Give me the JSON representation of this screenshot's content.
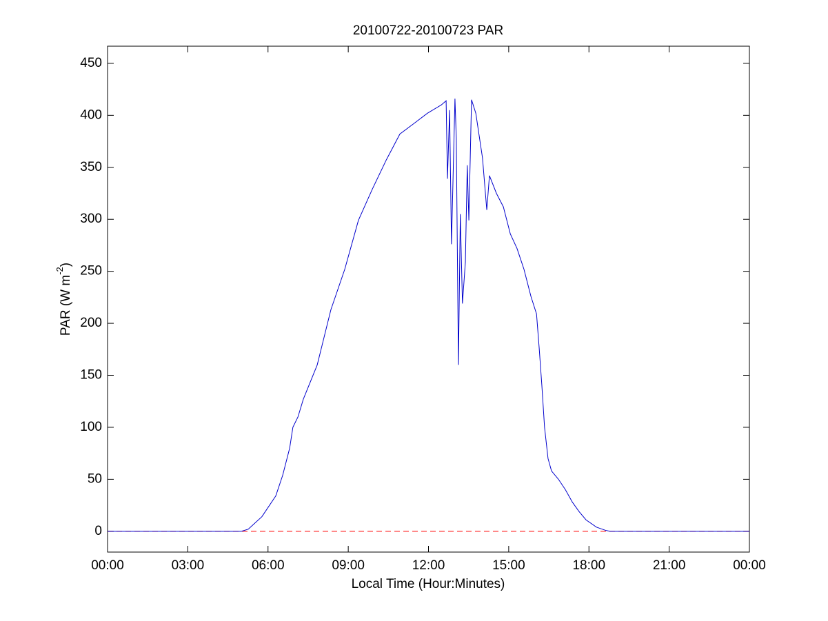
{
  "chart_data": {
    "type": "line",
    "title": "20100722-20100723 PAR",
    "xlabel": "Local Time (Hour:Minutes)",
    "ylabel_parts": [
      "PAR (W m",
      "-2",
      ")"
    ],
    "x": [
      0,
      5.0,
      5.26,
      5.77,
      6.29,
      6.55,
      6.81,
      6.93,
      7.12,
      7.32,
      7.84,
      8.35,
      8.87,
      9.38,
      9.9,
      10.42,
      10.93,
      11.45,
      11.96,
      12.48,
      12.66,
      12.71,
      12.79,
      12.86,
      12.99,
      13.04,
      13.12,
      13.19,
      13.27,
      13.38,
      13.45,
      13.51,
      13.61,
      13.77,
      14.02,
      14.18,
      14.28,
      14.54,
      14.8,
      15.06,
      15.31,
      15.57,
      15.83,
      16.04,
      16.14,
      16.24,
      16.34,
      16.47,
      16.6,
      16.86,
      17.12,
      17.38,
      17.63,
      17.89,
      18.28,
      18.61,
      18.79,
      24
    ],
    "series": [
      {
        "color": "#0000cc",
        "values": [
          0,
          0,
          2,
          14,
          34,
          54,
          80,
          100,
          110,
          127,
          160,
          213,
          252,
          299,
          329,
          357,
          382,
          392,
          402,
          410,
          414,
          339,
          405,
          276,
          416,
          378,
          160,
          305,
          219,
          259,
          352,
          299,
          415,
          402,
          359,
          309,
          342,
          325,
          312,
          286,
          272,
          252,
          226,
          209,
          176,
          140,
          100,
          70,
          58,
          50,
          40,
          28,
          19,
          11,
          4,
          1,
          0,
          0
        ]
      }
    ],
    "reference_line": {
      "value": 0,
      "color": "#ff0000",
      "style": "dashed"
    },
    "xlim": [
      0,
      24
    ],
    "xticks": [
      {
        "value": 0,
        "label": "00:00"
      },
      {
        "value": 3,
        "label": "03:00"
      },
      {
        "value": 6,
        "label": "06:00"
      },
      {
        "value": 9,
        "label": "09:00"
      },
      {
        "value": 12,
        "label": "12:00"
      },
      {
        "value": 15,
        "label": "15:00"
      },
      {
        "value": 18,
        "label": "18:00"
      },
      {
        "value": 21,
        "label": "21:00"
      },
      {
        "value": 24,
        "label": "00:00"
      }
    ],
    "ylim": [
      -20,
      466.5
    ],
    "yticks": [
      0,
      50,
      100,
      150,
      200,
      250,
      300,
      350,
      400,
      450
    ],
    "grid": false
  }
}
